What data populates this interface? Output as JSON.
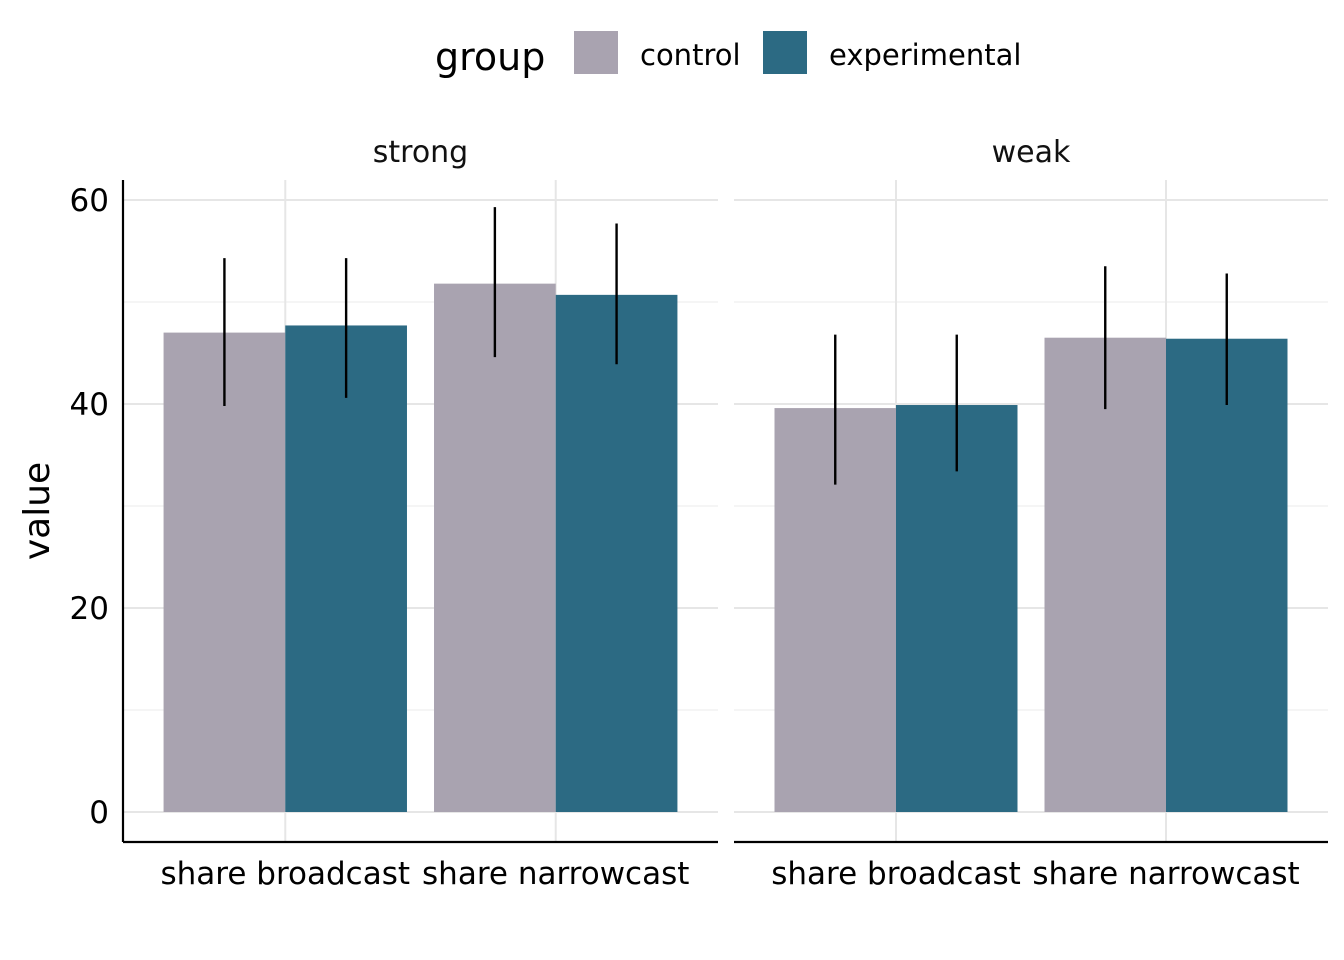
{
  "chart_data": {
    "type": "bar",
    "ylabel": "value",
    "ylim": [
      0,
      61
    ],
    "yticks": [
      0,
      20,
      40,
      60
    ],
    "grid": true,
    "legend": {
      "title": "group",
      "position": "top"
    },
    "categories": [
      "share broadcast",
      "share narrowcast"
    ],
    "series_names": [
      "control",
      "experimental"
    ],
    "colors": {
      "control": "#a9a3b0",
      "experimental": "#2c6a83"
    },
    "facets": [
      {
        "label": "strong",
        "series": [
          {
            "name": "control",
            "values": [
              47.0,
              51.8
            ],
            "err_low": [
              39.8,
              44.6
            ],
            "err_high": [
              54.3,
              59.3
            ]
          },
          {
            "name": "experimental",
            "values": [
              47.7,
              50.7
            ],
            "err_low": [
              40.6,
              43.9
            ],
            "err_high": [
              54.3,
              57.7
            ]
          }
        ]
      },
      {
        "label": "weak",
        "series": [
          {
            "name": "control",
            "values": [
              39.6,
              46.5
            ],
            "err_low": [
              32.1,
              39.5
            ],
            "err_high": [
              46.8,
              53.5
            ]
          },
          {
            "name": "experimental",
            "values": [
              39.9,
              46.4
            ],
            "err_low": [
              33.4,
              39.9
            ],
            "err_high": [
              46.8,
              52.8
            ]
          }
        ]
      }
    ]
  }
}
